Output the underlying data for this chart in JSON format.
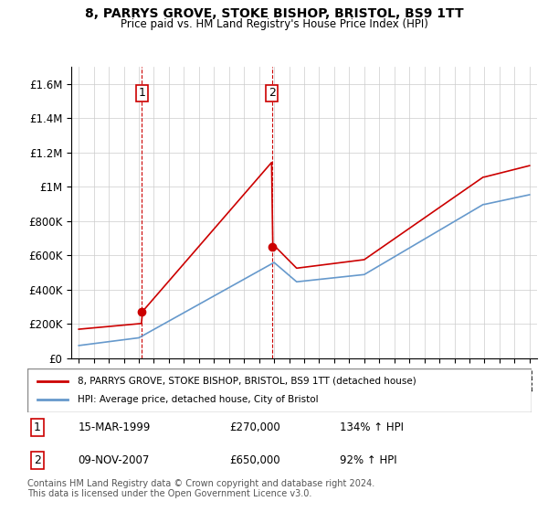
{
  "title": "8, PARRYS GROVE, STOKE BISHOP, BRISTOL, BS9 1TT",
  "subtitle": "Price paid vs. HM Land Registry's House Price Index (HPI)",
  "legend_line1": "8, PARRYS GROVE, STOKE BISHOP, BRISTOL, BS9 1TT (detached house)",
  "legend_line2": "HPI: Average price, detached house, City of Bristol",
  "annotation1_label": "1",
  "annotation1_date": "15-MAR-1999",
  "annotation1_price": "£270,000",
  "annotation1_hpi": "134% ↑ HPI",
  "annotation2_label": "2",
  "annotation2_date": "09-NOV-2007",
  "annotation2_price": "£650,000",
  "annotation2_hpi": "92% ↑ HPI",
  "footer": "Contains HM Land Registry data © Crown copyright and database right 2024.\nThis data is licensed under the Open Government Licence v3.0.",
  "red_color": "#cc0000",
  "blue_color": "#6699cc",
  "vline_color": "#cc0000",
  "ylim": [
    0,
    1700000
  ],
  "yticks": [
    0,
    200000,
    400000,
    600000,
    800000,
    1000000,
    1200000,
    1400000,
    1600000
  ],
  "ytick_labels": [
    "£0",
    "£200K",
    "£400K",
    "£600K",
    "£800K",
    "£1M",
    "£1.2M",
    "£1.4M",
    "£1.6M"
  ],
  "sale1_x": 1999.21,
  "sale1_y": 270000,
  "sale2_x": 2007.86,
  "sale2_y": 650000,
  "xmin": 1994.5,
  "xmax": 2025.5
}
